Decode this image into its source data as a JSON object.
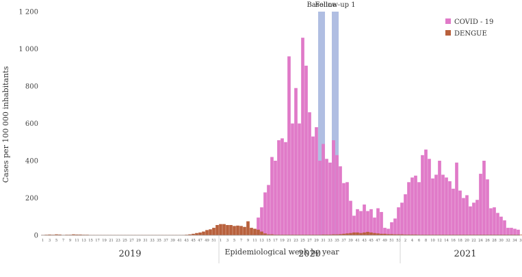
{
  "chart_data": {
    "type": "bar",
    "ylabel": "Cases per 100 000 inhabitants",
    "xlabel": "Epidemiological week by year",
    "ylim": [
      0,
      1200
    ],
    "yticks": [
      0,
      200,
      400,
      600,
      800,
      1000,
      1200
    ],
    "ytick_labels": [
      "0",
      "200",
      "400",
      "600",
      "800",
      "1 000",
      "1 200"
    ],
    "grid": false,
    "legend_position": "top-right",
    "years": [
      {
        "label": "2019",
        "start_week_index": 0,
        "weeks": 52
      },
      {
        "label": "2020",
        "start_week_index": 52,
        "weeks": 53
      },
      {
        "label": "2021",
        "start_week_index": 105,
        "weeks": 38
      }
    ],
    "week_tick_labels": [
      "1",
      "3",
      "5",
      "7",
      "9",
      "11",
      "13",
      "15",
      "17",
      "19",
      "21",
      "23",
      "25",
      "27",
      "29",
      "31",
      "33",
      "35",
      "37",
      "39",
      "41",
      "43",
      "45",
      "47",
      "49",
      "51",
      "1",
      "3",
      "5",
      "7",
      "9",
      "11",
      "13",
      "15",
      "17",
      "19",
      "21",
      "23",
      "25",
      "27",
      "29",
      "31",
      "33",
      "35",
      "37",
      "39",
      "41",
      "43",
      "45",
      "47",
      "49",
      "51",
      "53",
      "2",
      "4",
      "6",
      "8",
      "10",
      "12",
      "14",
      "16",
      "18",
      "20",
      "22",
      "24",
      "26",
      "28",
      "30",
      "32",
      "34",
      "36",
      "38"
    ],
    "shaded_regions": [
      {
        "label": "Baseline",
        "from_week_index": 81,
        "to_week_index": 83,
        "color": "#9fb0dc"
      },
      {
        "label": "Follow-up 1",
        "from_week_index": 85,
        "to_week_index": 87,
        "color": "#9fb0dc"
      }
    ],
    "series": [
      {
        "name": "COVID - 19",
        "color": "#e07ac8",
        "values": [
          0,
          0,
          0,
          0,
          0,
          0,
          0,
          0,
          0,
          0,
          0,
          0,
          0,
          0,
          0,
          0,
          0,
          0,
          0,
          0,
          0,
          0,
          0,
          0,
          0,
          0,
          0,
          0,
          0,
          0,
          0,
          0,
          0,
          0,
          0,
          0,
          0,
          0,
          0,
          0,
          0,
          0,
          0,
          0,
          0,
          0,
          0,
          0,
          0,
          0,
          0,
          0,
          0,
          0,
          0,
          0,
          0,
          0,
          0,
          0,
          0,
          0,
          10,
          95,
          150,
          230,
          270,
          420,
          400,
          510,
          520,
          500,
          960,
          600,
          790,
          600,
          1060,
          910,
          660,
          530,
          580,
          400,
          490,
          410,
          390,
          510,
          430,
          370,
          280,
          285,
          185,
          105,
          140,
          130,
          165,
          130,
          140,
          95,
          145,
          125,
          40,
          35,
          70,
          90,
          150,
          175,
          220,
          285,
          310,
          320,
          285,
          430,
          460,
          410,
          305,
          325,
          400,
          325,
          310,
          290,
          250,
          390,
          240,
          200,
          215,
          155,
          175,
          190,
          330,
          400,
          300,
          145,
          150,
          120,
          100,
          80,
          40,
          40,
          35,
          30
        ]
      },
      {
        "name": "DENGUE",
        "color": "#b8603c",
        "values": [
          2,
          3,
          4,
          3,
          5,
          4,
          2,
          3,
          3,
          5,
          4,
          4,
          3,
          3,
          2,
          2,
          2,
          2,
          2,
          2,
          2,
          2,
          2,
          2,
          2,
          2,
          2,
          2,
          2,
          2,
          2,
          2,
          2,
          2,
          2,
          2,
          2,
          2,
          2,
          2,
          2,
          2,
          3,
          5,
          8,
          12,
          15,
          20,
          28,
          32,
          40,
          55,
          60,
          60,
          55,
          55,
          50,
          52,
          50,
          45,
          75,
          40,
          35,
          30,
          20,
          10,
          5,
          5,
          3,
          3,
          3,
          3,
          3,
          3,
          3,
          3,
          3,
          3,
          3,
          3,
          3,
          3,
          4,
          4,
          4,
          5,
          5,
          6,
          8,
          10,
          12,
          15,
          15,
          12,
          15,
          18,
          15,
          12,
          10,
          8,
          8,
          6,
          6,
          5,
          5,
          5,
          4,
          4,
          4,
          4,
          3,
          3,
          3,
          3,
          3,
          3,
          3,
          3,
          3,
          3,
          3,
          3,
          3,
          3,
          3,
          3,
          3,
          3,
          3,
          3,
          3,
          3,
          3,
          3,
          3,
          3,
          3,
          3,
          3,
          3,
          3,
          3,
          3
        ]
      }
    ]
  }
}
